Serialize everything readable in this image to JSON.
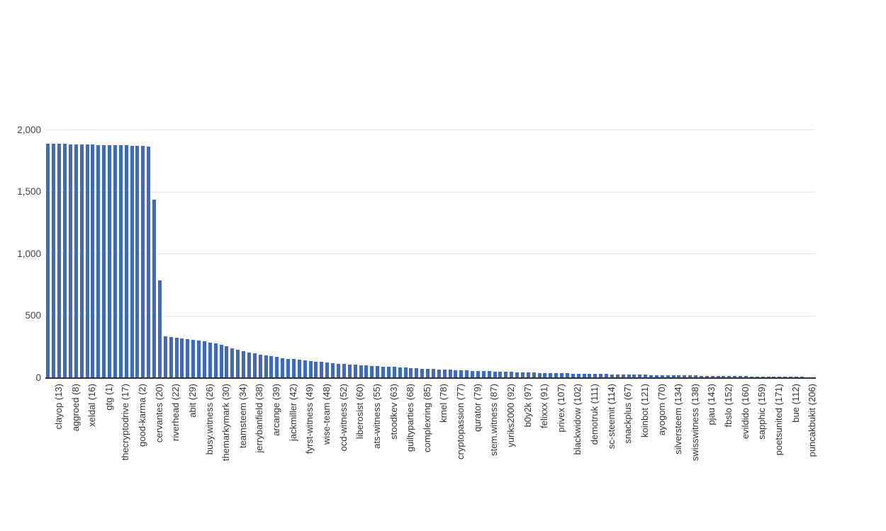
{
  "chart_data": {
    "type": "bar",
    "title": "",
    "xlabel": "",
    "ylabel": "",
    "ylim": [
      0,
      2000
    ],
    "grid": true,
    "legend_position": "none",
    "bar_color": "#3b6bc4",
    "axis_line_color": "#333333",
    "gridline_color": "#e6e6e6",
    "y_ticks": [
      {
        "label": "2,000",
        "value": 2000
      },
      {
        "label": "1,500",
        "value": 1500
      },
      {
        "label": "1,000",
        "value": 1000
      },
      {
        "label": "500",
        "value": 500
      },
      {
        "label": "0",
        "value": 0
      }
    ],
    "label_every_nth_bar": 3,
    "categories": [
      "clayop (13)",
      "aggroed (8)",
      "xeldal (16)",
      "gtg (1)",
      "thecryptodrive (17)",
      "good-karma (2)",
      "cervantes (20)",
      "riverhead (22)",
      "abit (29)",
      "busy.witness (26)",
      "themarkymark (30)",
      "teamsteem (34)",
      "jerrybanfield (38)",
      "arcange (39)",
      "jackmiller (42)",
      "fyrst-witness (49)",
      "wise-team (48)",
      "ocd-witness (52)",
      "liberosist (60)",
      "ats-witness (55)",
      "stoodkev (63)",
      "guiltyparties (68)",
      "complexring (85)",
      "krnel (78)",
      "cryptopassion (77)",
      "qurator (79)",
      "stem.witness (87)",
      "yuriks2000 (92)",
      "b0y2k (97)",
      "felixxx (91)",
      "privex (107)",
      "blackwidow (102)",
      "demotruk (111)",
      "sc-steemit (114)",
      "snackplus (67)",
      "koinbot (121)",
      "ayogom (70)",
      "silversteem (134)",
      "swisswitness (138)",
      "pjau (143)",
      "fbslo (152)",
      "evildido (160)",
      "sapphic (159)",
      "poetsunited (171)",
      "bue (112)",
      "puncakbukit (206)"
    ],
    "values": [
      1886,
      1885,
      1884,
      1883,
      1882,
      1881,
      1880,
      1879,
      1878,
      1877,
      1876,
      1875,
      1874,
      1873,
      1872,
      1871,
      1869,
      1866,
      1862,
      1434,
      783,
      333,
      327,
      320,
      314,
      308,
      302,
      296,
      289,
      282,
      274,
      265,
      252,
      237,
      224,
      212,
      202,
      192,
      184,
      176,
      170,
      163,
      157,
      151,
      146,
      141,
      136,
      131,
      127,
      123,
      119,
      115,
      111,
      108,
      105,
      102,
      99,
      96,
      93,
      90,
      88,
      85,
      83,
      80,
      78,
      76,
      74,
      71,
      69,
      67,
      65,
      63,
      61,
      59,
      57,
      56,
      54,
      52,
      51,
      49,
      48,
      46,
      45,
      44,
      42,
      41,
      40,
      39,
      37,
      36,
      35,
      34,
      33,
      32,
      31,
      30,
      29,
      28,
      27,
      27,
      26,
      25,
      24,
      24,
      23,
      22,
      21,
      21,
      20,
      19,
      19,
      18,
      17,
      17,
      16,
      15,
      15,
      14,
      13,
      13,
      12,
      11,
      11,
      10,
      9,
      9,
      8,
      7,
      7,
      6,
      5,
      5,
      4,
      4,
      3,
      3,
      2,
      2
    ]
  },
  "layout_note": ""
}
